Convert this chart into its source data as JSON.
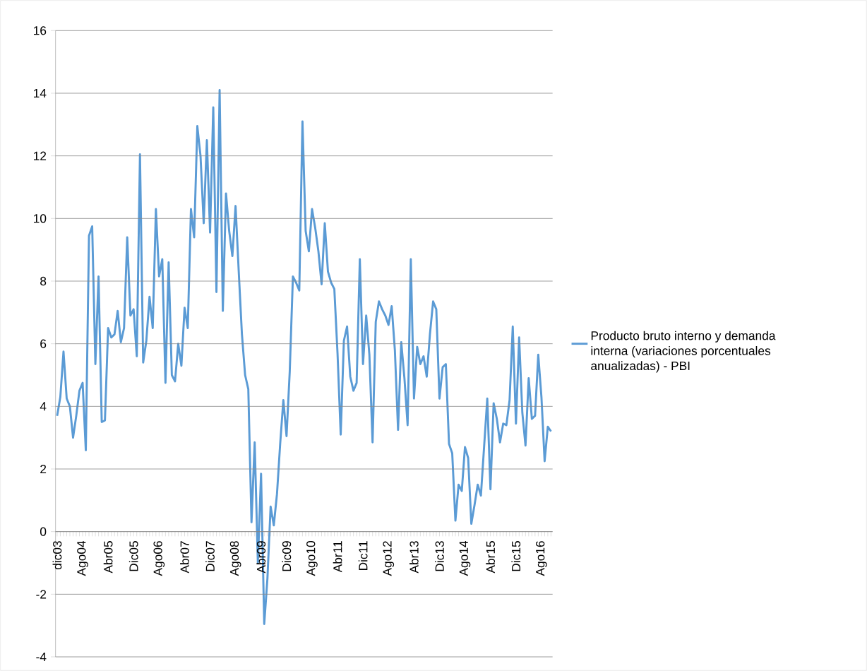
{
  "chart_data": {
    "type": "line",
    "categories": [
      "dic03",
      null,
      null,
      null,
      null,
      null,
      null,
      null,
      "Ago04",
      null,
      null,
      null,
      null,
      null,
      null,
      null,
      "Abr05",
      null,
      null,
      null,
      null,
      null,
      null,
      null,
      "Dic05",
      null,
      null,
      null,
      null,
      null,
      null,
      null,
      "Ago06",
      null,
      null,
      null,
      null,
      null,
      null,
      null,
      "Abr07",
      null,
      null,
      null,
      null,
      null,
      null,
      null,
      "Dic07",
      null,
      null,
      null,
      null,
      null,
      null,
      null,
      "Ago08",
      null,
      null,
      null,
      null,
      null,
      null,
      null,
      "Abr09",
      null,
      null,
      null,
      null,
      null,
      null,
      null,
      "Dic09",
      null,
      null,
      null,
      null,
      null,
      null,
      null,
      "Ago10",
      null,
      null,
      null,
      null,
      null,
      null,
      null,
      "Abr11",
      null,
      null,
      null,
      null,
      null,
      null,
      null,
      "Dic11",
      null,
      null,
      null,
      null,
      null,
      null,
      null,
      "Ago12",
      null,
      null,
      null,
      null,
      null,
      null,
      null,
      "Abr13",
      null,
      null,
      null,
      null,
      null,
      null,
      null,
      "Dic13",
      null,
      null,
      null,
      null,
      null,
      null,
      null,
      "Ago14",
      null,
      null,
      null,
      null,
      null,
      null,
      null,
      "Abr15",
      null,
      null,
      null,
      null,
      null,
      null,
      null,
      "Dic15",
      null,
      null,
      null,
      null,
      null,
      null,
      null,
      "Ago16",
      null,
      null,
      null
    ],
    "series": [
      {
        "name": "Producto bruto interno y demanda interna (variaciones porcentuales anualizadas) - PBI",
        "color": "#5b9bd5",
        "values": [
          3.7,
          4.3,
          5.75,
          4.25,
          4.0,
          3.0,
          3.7,
          4.5,
          4.75,
          2.6,
          9.45,
          9.75,
          5.35,
          8.15,
          3.5,
          3.55,
          6.5,
          6.2,
          6.3,
          7.05,
          6.05,
          6.5,
          9.4,
          6.9,
          7.1,
          5.6,
          12.05,
          5.4,
          6.1,
          7.5,
          6.5,
          10.3,
          8.15,
          8.7,
          4.75,
          8.6,
          5.0,
          4.8,
          6.0,
          5.3,
          7.15,
          6.5,
          10.3,
          9.4,
          12.95,
          12.0,
          9.85,
          12.5,
          9.55,
          13.55,
          7.65,
          14.1,
          7.05,
          10.8,
          9.6,
          8.8,
          10.4,
          8.3,
          6.3,
          5.0,
          4.55,
          0.3,
          2.85,
          -1.0,
          1.85,
          -2.95,
          -1.5,
          0.8,
          0.2,
          1.2,
          2.8,
          4.2,
          3.05,
          5.1,
          8.15,
          7.95,
          7.7,
          13.1,
          9.6,
          8.95,
          10.3,
          9.7,
          8.95,
          7.9,
          9.85,
          8.3,
          7.95,
          7.75,
          5.7,
          3.1,
          6.1,
          6.55,
          4.95,
          4.5,
          4.75,
          8.7,
          5.35,
          6.9,
          5.65,
          2.85,
          6.7,
          7.35,
          7.1,
          6.9,
          6.6,
          7.2,
          5.8,
          3.25,
          6.05,
          4.9,
          3.4,
          8.7,
          4.25,
          5.9,
          5.35,
          5.6,
          4.95,
          6.3,
          7.35,
          7.1,
          4.25,
          5.25,
          5.35,
          2.8,
          2.5,
          0.35,
          1.5,
          1.3,
          2.7,
          2.35,
          0.25,
          0.85,
          1.5,
          1.15,
          2.7,
          4.25,
          1.35,
          4.1,
          3.6,
          2.85,
          3.45,
          3.4,
          4.2,
          6.55,
          3.45,
          6.2,
          3.8,
          2.75,
          4.9,
          3.6,
          3.7,
          5.65,
          4.3,
          2.25,
          3.35,
          3.2
        ]
      }
    ],
    "ylim": [
      -4,
      16
    ],
    "yticks": [
      -4,
      -2,
      0,
      2,
      4,
      6,
      8,
      10,
      12,
      14,
      16
    ],
    "grid": "y",
    "legend": "right",
    "marker": "none",
    "line_style": "solid"
  }
}
